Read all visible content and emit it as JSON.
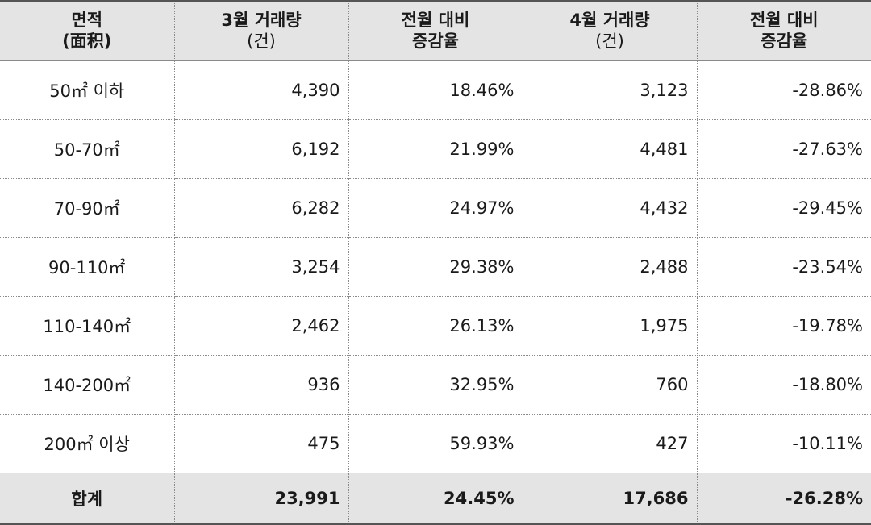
{
  "headers": [
    {
      "line1": "면적",
      "line2": "(面积)",
      "line2_bold": true
    },
    {
      "line1": "3월 거래량",
      "line2": "(건)",
      "line2_bold": false
    },
    {
      "line1": "전월 대비",
      "line2": "증감율",
      "line2_bold": true
    },
    {
      "line1": "4월 거래량",
      "line2": "(건)",
      "line2_bold": false
    },
    {
      "line1": "전월 대비",
      "line2": "증감율",
      "line2_bold": true
    }
  ],
  "rows": [
    {
      "area": "50㎡ 이하",
      "march": "4,390",
      "march_change": "18.46%",
      "april": "3,123",
      "april_change": "-28.86%"
    },
    {
      "area": "50-70㎡",
      "march": "6,192",
      "march_change": "21.99%",
      "april": "4,481",
      "april_change": "-27.63%"
    },
    {
      "area": "70-90㎡",
      "march": "6,282",
      "march_change": "24.97%",
      "april": "4,432",
      "april_change": "-29.45%"
    },
    {
      "area": "90-110㎡",
      "march": "3,254",
      "march_change": "29.38%",
      "april": "2,488",
      "april_change": "-23.54%"
    },
    {
      "area": "110-140㎡",
      "march": "2,462",
      "march_change": "26.13%",
      "april": "1,975",
      "april_change": "-19.78%"
    },
    {
      "area": "140-200㎡",
      "march": "936",
      "march_change": "32.95%",
      "april": "760",
      "april_change": "-18.80%"
    },
    {
      "area": "200㎡ 이상",
      "march": "475",
      "march_change": "59.93%",
      "april": "427",
      "april_change": "-10.11%"
    }
  ],
  "total": {
    "area": "합계",
    "march": "23,991",
    "march_change": "24.45%",
    "april": "17,686",
    "april_change": "-26.28%"
  }
}
